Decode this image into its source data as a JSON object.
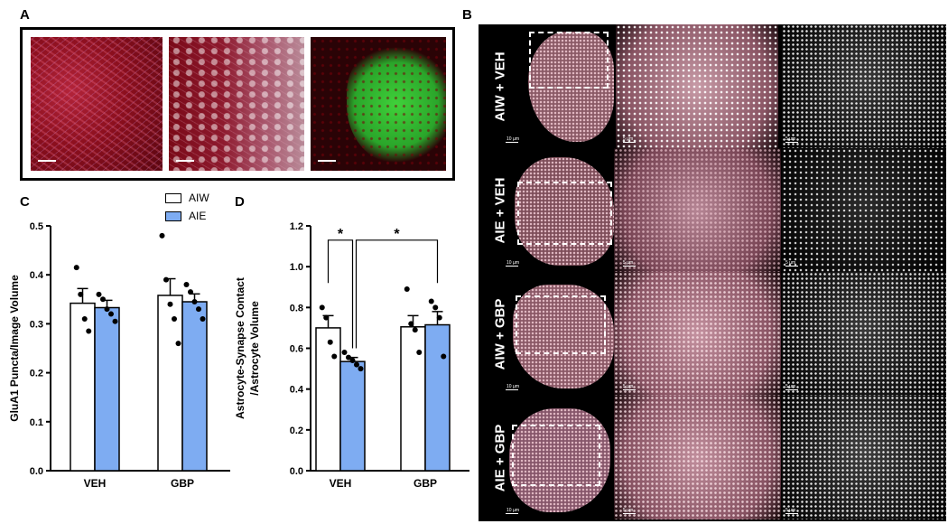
{
  "panel_labels": {
    "a": "A",
    "b": "B",
    "c": "C",
    "d": "D"
  },
  "panel_b": {
    "conditions": [
      "AIW + VEH",
      "AIE + VEH",
      "AIW + GBP",
      "AIE + GBP"
    ],
    "scale_labels": [
      "10 µm",
      "5 µm",
      "5 µm"
    ]
  },
  "legend": [
    {
      "label": "AIW",
      "color": "#ffffff"
    },
    {
      "label": "AIE",
      "color": "#7eacf2"
    }
  ],
  "chart_data": [
    {
      "type": "bar",
      "panel": "C",
      "categories": [
        "VEH",
        "GBP"
      ],
      "ylabel": "GluA1 Puncta/Image Volume",
      "ylim": [
        0,
        0.5
      ],
      "yticks": [
        "0.0",
        "0.1",
        "0.2",
        "0.3",
        "0.4",
        "0.5"
      ],
      "series": [
        {
          "name": "AIW",
          "values": [
            0.342,
            0.358
          ],
          "sem": [
            0.03,
            0.034
          ],
          "points": [
            [
              0.415,
              0.36,
              0.31,
              0.285
            ],
            [
              0.48,
              0.39,
              0.34,
              0.31,
              0.26
            ]
          ]
        },
        {
          "name": "AIE",
          "values": [
            0.333,
            0.345
          ],
          "sem": [
            0.015,
            0.016
          ],
          "points": [
            [
              0.36,
              0.35,
              0.33,
              0.32,
              0.305
            ],
            [
              0.38,
              0.365,
              0.345,
              0.33,
              0.31
            ]
          ]
        }
      ]
    },
    {
      "type": "bar",
      "panel": "D",
      "categories": [
        "VEH",
        "GBP"
      ],
      "ylabel": "Astrocyte-Synapse Contact /Astrocyte Volume",
      "ylim": [
        0,
        1.2
      ],
      "yticks": [
        "0.0",
        "0.2",
        "0.4",
        "0.6",
        "0.8",
        "1.0",
        "1.2"
      ],
      "series": [
        {
          "name": "AIW",
          "values": [
            0.7,
            0.705
          ],
          "sem": [
            0.06,
            0.055
          ],
          "points": [
            [
              0.8,
              0.75,
              0.63,
              0.56
            ],
            [
              0.89,
              0.72,
              0.69,
              0.58
            ]
          ]
        },
        {
          "name": "AIE",
          "values": [
            0.535,
            0.715
          ],
          "sem": [
            0.02,
            0.065
          ],
          "points": [
            [
              0.58,
              0.555,
              0.54,
              0.52,
              0.5
            ],
            [
              0.83,
              0.8,
              0.75,
              0.56
            ]
          ]
        }
      ],
      "significance": [
        {
          "label": "*",
          "between": "AIW VEH vs AIE VEH"
        },
        {
          "label": "*",
          "between": "AIE VEH vs AIE GBP"
        }
      ]
    }
  ]
}
